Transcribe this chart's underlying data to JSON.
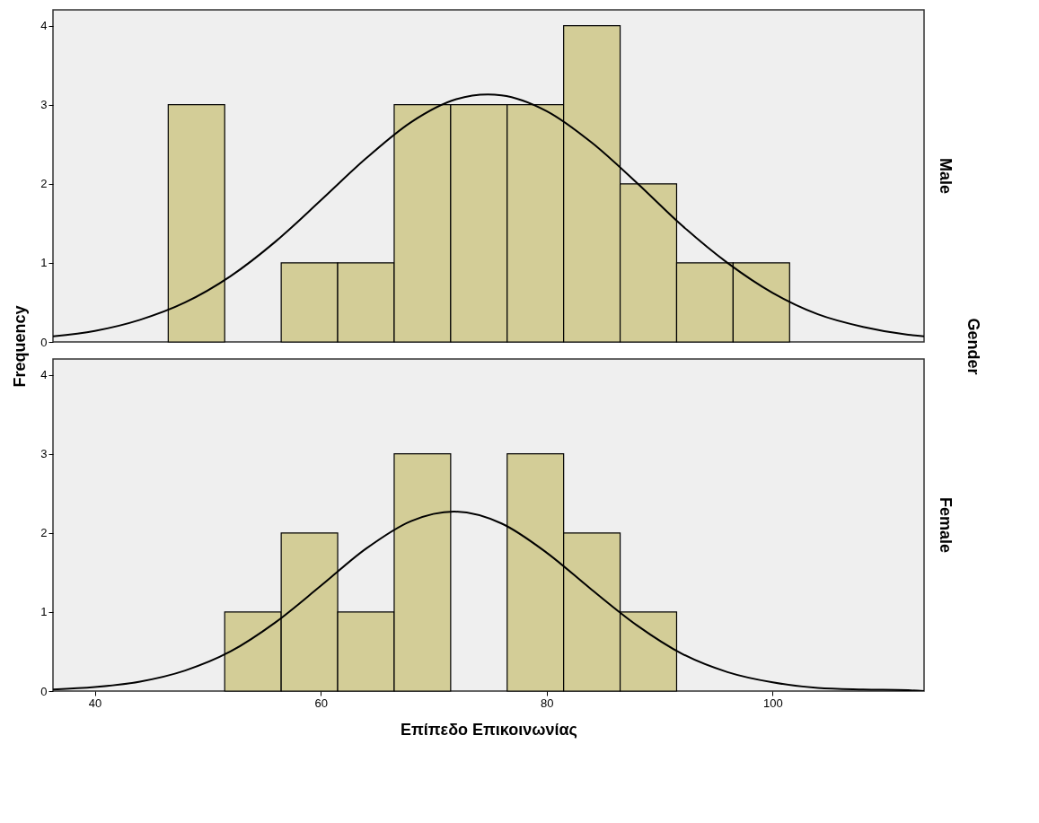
{
  "chart_data": [
    {
      "type": "histogram",
      "y2label": "Male",
      "ylabel": "Frequency",
      "annotations": [
        "Gender"
      ],
      "tick_labels": "y",
      "bins": [
        46.5,
        51.5,
        56.5,
        61.5,
        66.5,
        71.5,
        76.5,
        81.5,
        86.5,
        91.5,
        96.5,
        101.5
      ],
      "xlim": [
        36.3,
        113.4
      ],
      "xticks": [
        40,
        60,
        80,
        100
      ],
      "ylim": [
        0,
        4.2
      ],
      "yticks": [
        0,
        1,
        2,
        3,
        4
      ],
      "grid": false,
      "legend": false,
      "series": [
        {
          "type": "histogram",
          "color": "#d3cd97",
          "values": [
            3,
            0,
            1,
            1,
            3,
            3,
            3,
            4,
            2,
            1,
            1
          ]
        },
        {
          "type": "line",
          "color": "#000000",
          "x": [
            36.3,
            40,
            44,
            48,
            52,
            56,
            60,
            64,
            68,
            72,
            74.8,
            76,
            80,
            84,
            88,
            92,
            96,
            100,
            104,
            108,
            112,
            113.4
          ],
          "values": [
            0.07,
            0.14,
            0.28,
            0.5,
            0.83,
            1.27,
            1.79,
            2.32,
            2.78,
            3.07,
            3.13,
            3.12,
            2.92,
            2.52,
            2.01,
            1.47,
            1.0,
            0.62,
            0.35,
            0.19,
            0.09,
            0.07
          ]
        }
      ]
    },
    {
      "type": "histogram",
      "y2label": "Female",
      "xlabel": "Επίπεδο Επικοινωνίας",
      "bins": [
        46.5,
        51.5,
        56.5,
        61.5,
        66.5,
        71.5,
        76.5,
        81.5,
        86.5,
        91.5,
        96.5,
        101.5
      ],
      "xlim": [
        36.3,
        113.4
      ],
      "xticks": [
        40,
        60,
        80,
        100
      ],
      "ylim": [
        0,
        4.2
      ],
      "yticks": [
        0,
        1,
        2,
        3,
        4
      ],
      "grid": false,
      "legend": false,
      "series": [
        {
          "type": "histogram",
          "color": "#d3cd97",
          "values": [
            0,
            1,
            2,
            1,
            3,
            0,
            3,
            2,
            1,
            0,
            0
          ]
        },
        {
          "type": "line",
          "color": "#000000",
          "x": [
            36.3,
            40,
            44,
            48,
            52,
            56,
            60,
            64,
            68,
            71.8,
            76,
            80,
            84,
            88,
            92,
            96,
            100,
            104,
            108,
            112,
            113.4
          ],
          "values": [
            0.02,
            0.05,
            0.12,
            0.26,
            0.5,
            0.87,
            1.33,
            1.8,
            2.15,
            2.27,
            2.12,
            1.75,
            1.28,
            0.83,
            0.47,
            0.24,
            0.11,
            0.04,
            0.02,
            0.01,
            0.0
          ]
        }
      ]
    }
  ]
}
